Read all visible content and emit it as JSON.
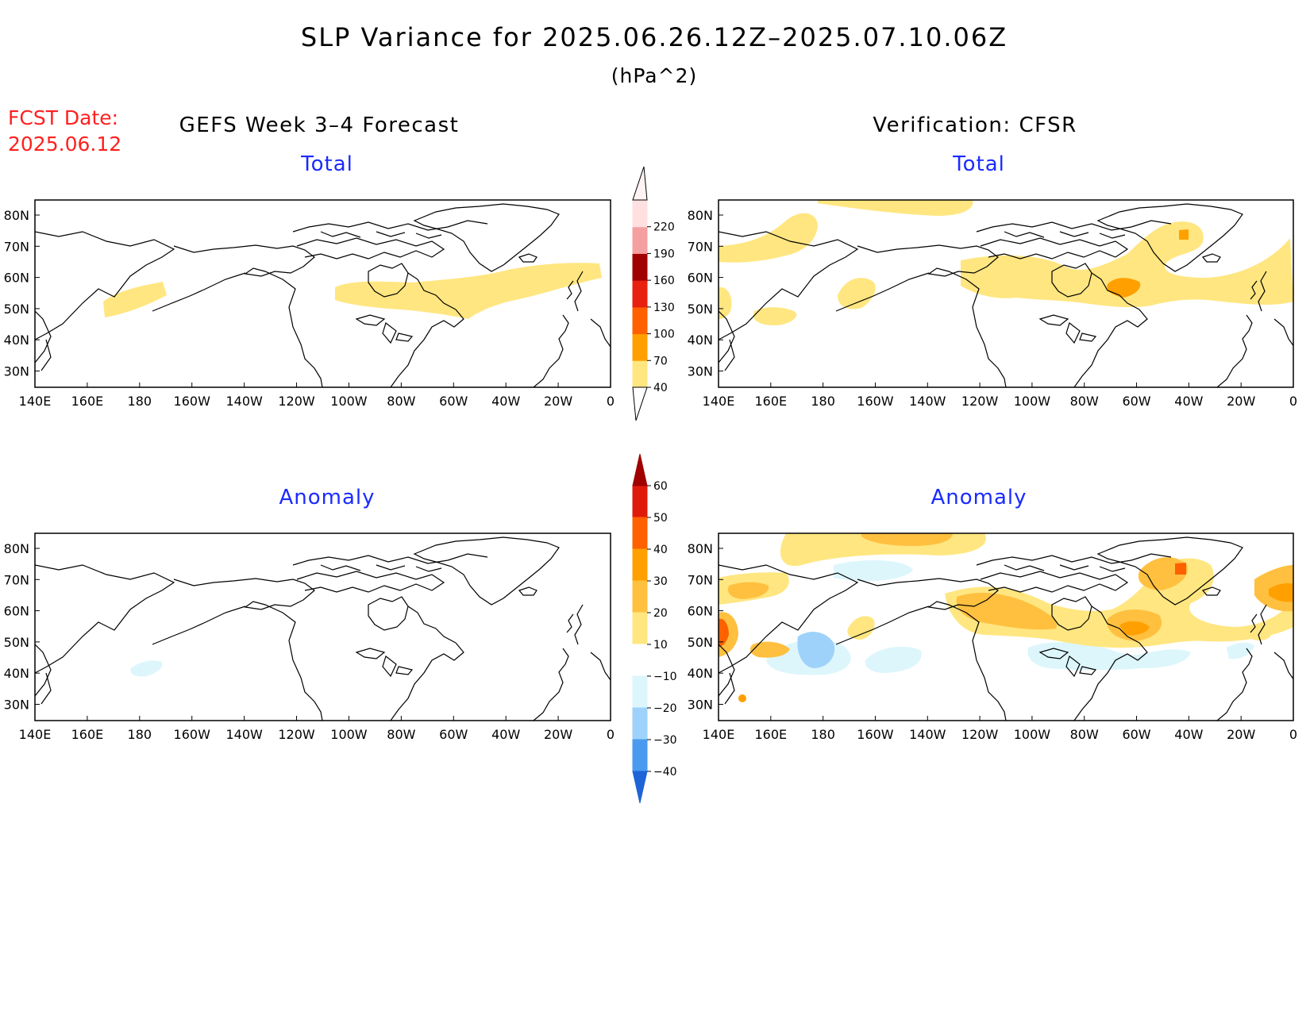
{
  "header": {
    "title": "SLP Variance for 2025.06.26.12Z–2025.07.10.06Z",
    "units": "(hPa^2)",
    "fcst_label": "FCST Date:",
    "fcst_date": "2025.06.12",
    "left_heading": "GEFS Week 3–4 Forecast",
    "right_heading": "Verification: CFSR"
  },
  "panels": {
    "forecast_total": {
      "title": "Total"
    },
    "verification_total": {
      "title": "Total"
    },
    "forecast_anomaly": {
      "title": "Anomaly"
    },
    "verification_anomaly": {
      "title": "Anomaly"
    }
  },
  "axes": {
    "lon_labels": [
      "140E",
      "160E",
      "180",
      "160W",
      "140W",
      "120W",
      "100W",
      "80W",
      "60W",
      "40W",
      "20W",
      "0"
    ],
    "lat_labels": [
      "80N",
      "70N",
      "60N",
      "50N",
      "40N",
      "30N"
    ]
  },
  "colorbars": {
    "total": {
      "levels": [
        "40",
        "70",
        "100",
        "130",
        "160",
        "190",
        "220"
      ],
      "colors": [
        "#ffe680",
        "#ffa000",
        "#ff6000",
        "#e82010",
        "#a00000",
        "#f4a0a0",
        "#ffe0e0"
      ]
    },
    "anomaly": {
      "levels": [
        "60",
        "50",
        "40",
        "30",
        "20",
        "10",
        "−10",
        "−20",
        "−30",
        "−40"
      ],
      "colors": [
        "#a00000",
        "#e01a0a",
        "#ff6000",
        "#ffa000",
        "#ffc040",
        "#ffe680",
        "#ffffff",
        "#dcf6fc",
        "#9ed2fa",
        "#4a9af0",
        "#1e64d6"
      ]
    }
  }
}
